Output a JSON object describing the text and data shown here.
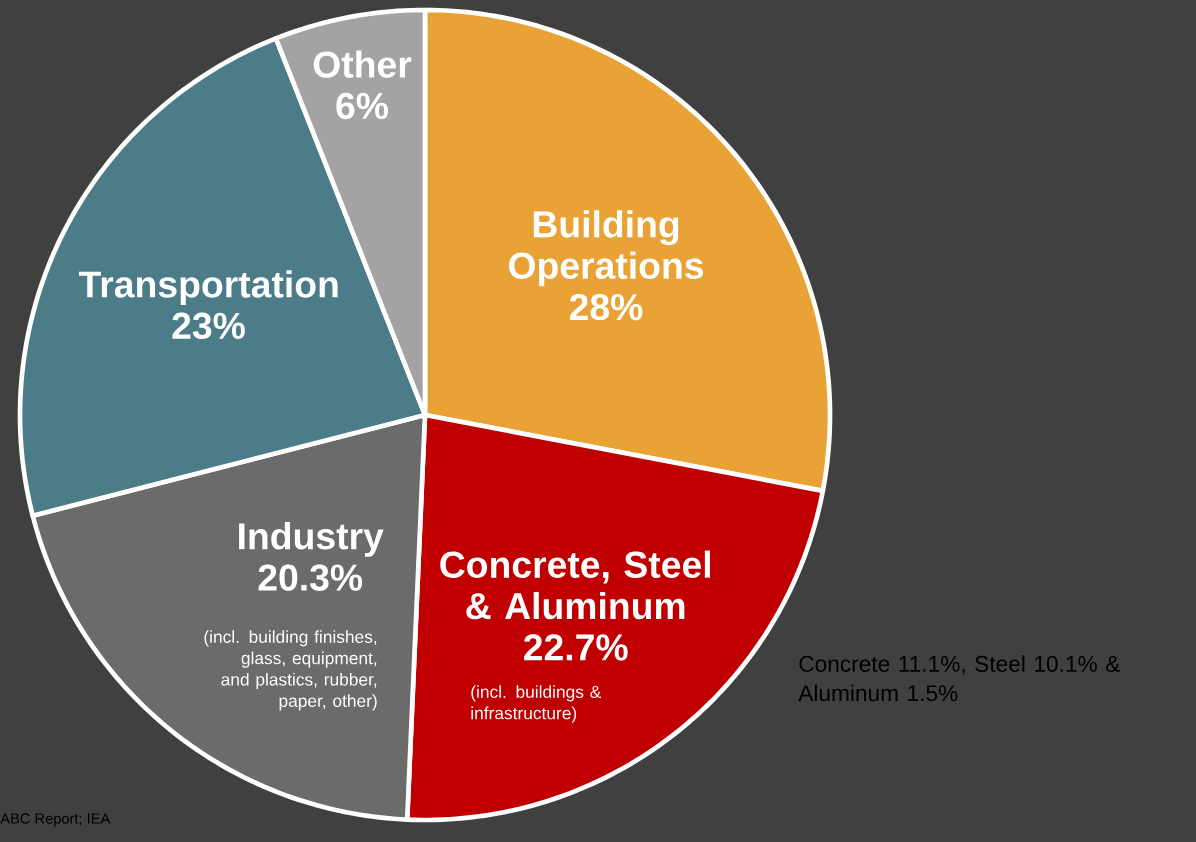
{
  "chart_data": {
    "type": "pie",
    "categories": [
      "Building Operations",
      "Concrete, Steel & Aluminum",
      "Industry",
      "Transportation",
      "Other"
    ],
    "values": [
      28,
      22.7,
      20.3,
      23,
      6
    ],
    "value_labels": [
      "28%",
      "22.7%",
      "20.3%",
      "23%",
      "6%"
    ],
    "colors": [
      "#e8a236",
      "#c00000",
      "#6b6b6b",
      "#4b7c88",
      "#a3a3a3"
    ],
    "annotations": [
      "(incl. buildings & infrastructure)",
      "(incl. building finishes, glass, equipment, and plastics, rubber, paper, other)",
      "Concrete 11.1%, Steel 10.1% & Aluminum 1.5%",
      "ABC Report; IEA"
    ]
  }
}
